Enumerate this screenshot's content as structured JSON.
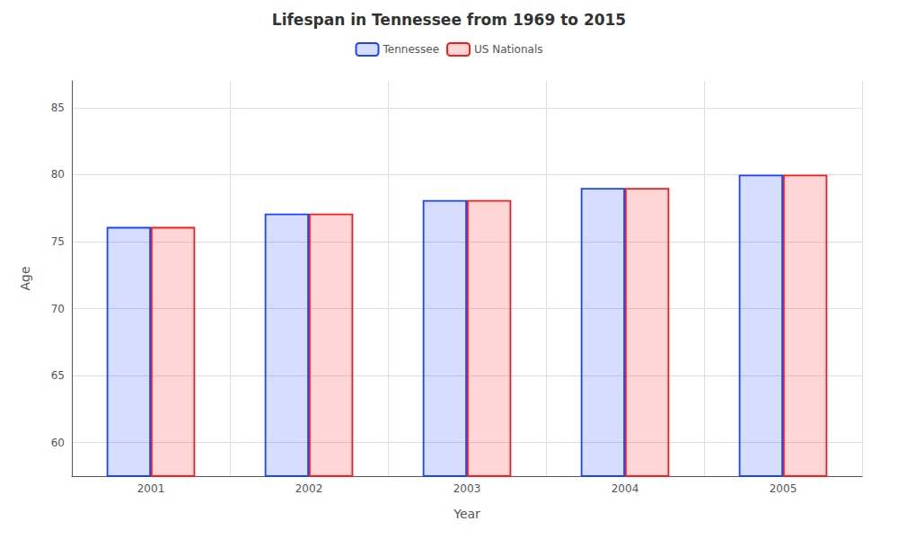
{
  "chart_data": {
    "type": "bar",
    "title": "Lifespan in Tennessee from 1969 to 2015",
    "x_label": "Year",
    "y_label": "Age",
    "categories": [
      "2001",
      "2002",
      "2003",
      "2004",
      "2005"
    ],
    "series": [
      {
        "name": "Tennessee",
        "color": "#1a44ff",
        "values": [
          76.1,
          77.1,
          78.1,
          79.0,
          80.0
        ]
      },
      {
        "name": "US Nationals",
        "color": "#ff1a1a",
        "values": [
          76.1,
          77.1,
          78.1,
          79.0,
          80.0
        ]
      }
    ],
    "ylim": [
      57.5,
      87
    ],
    "yticks": [
      60,
      65,
      70,
      75,
      80,
      85
    ],
    "grid": true,
    "legend": "top"
  }
}
